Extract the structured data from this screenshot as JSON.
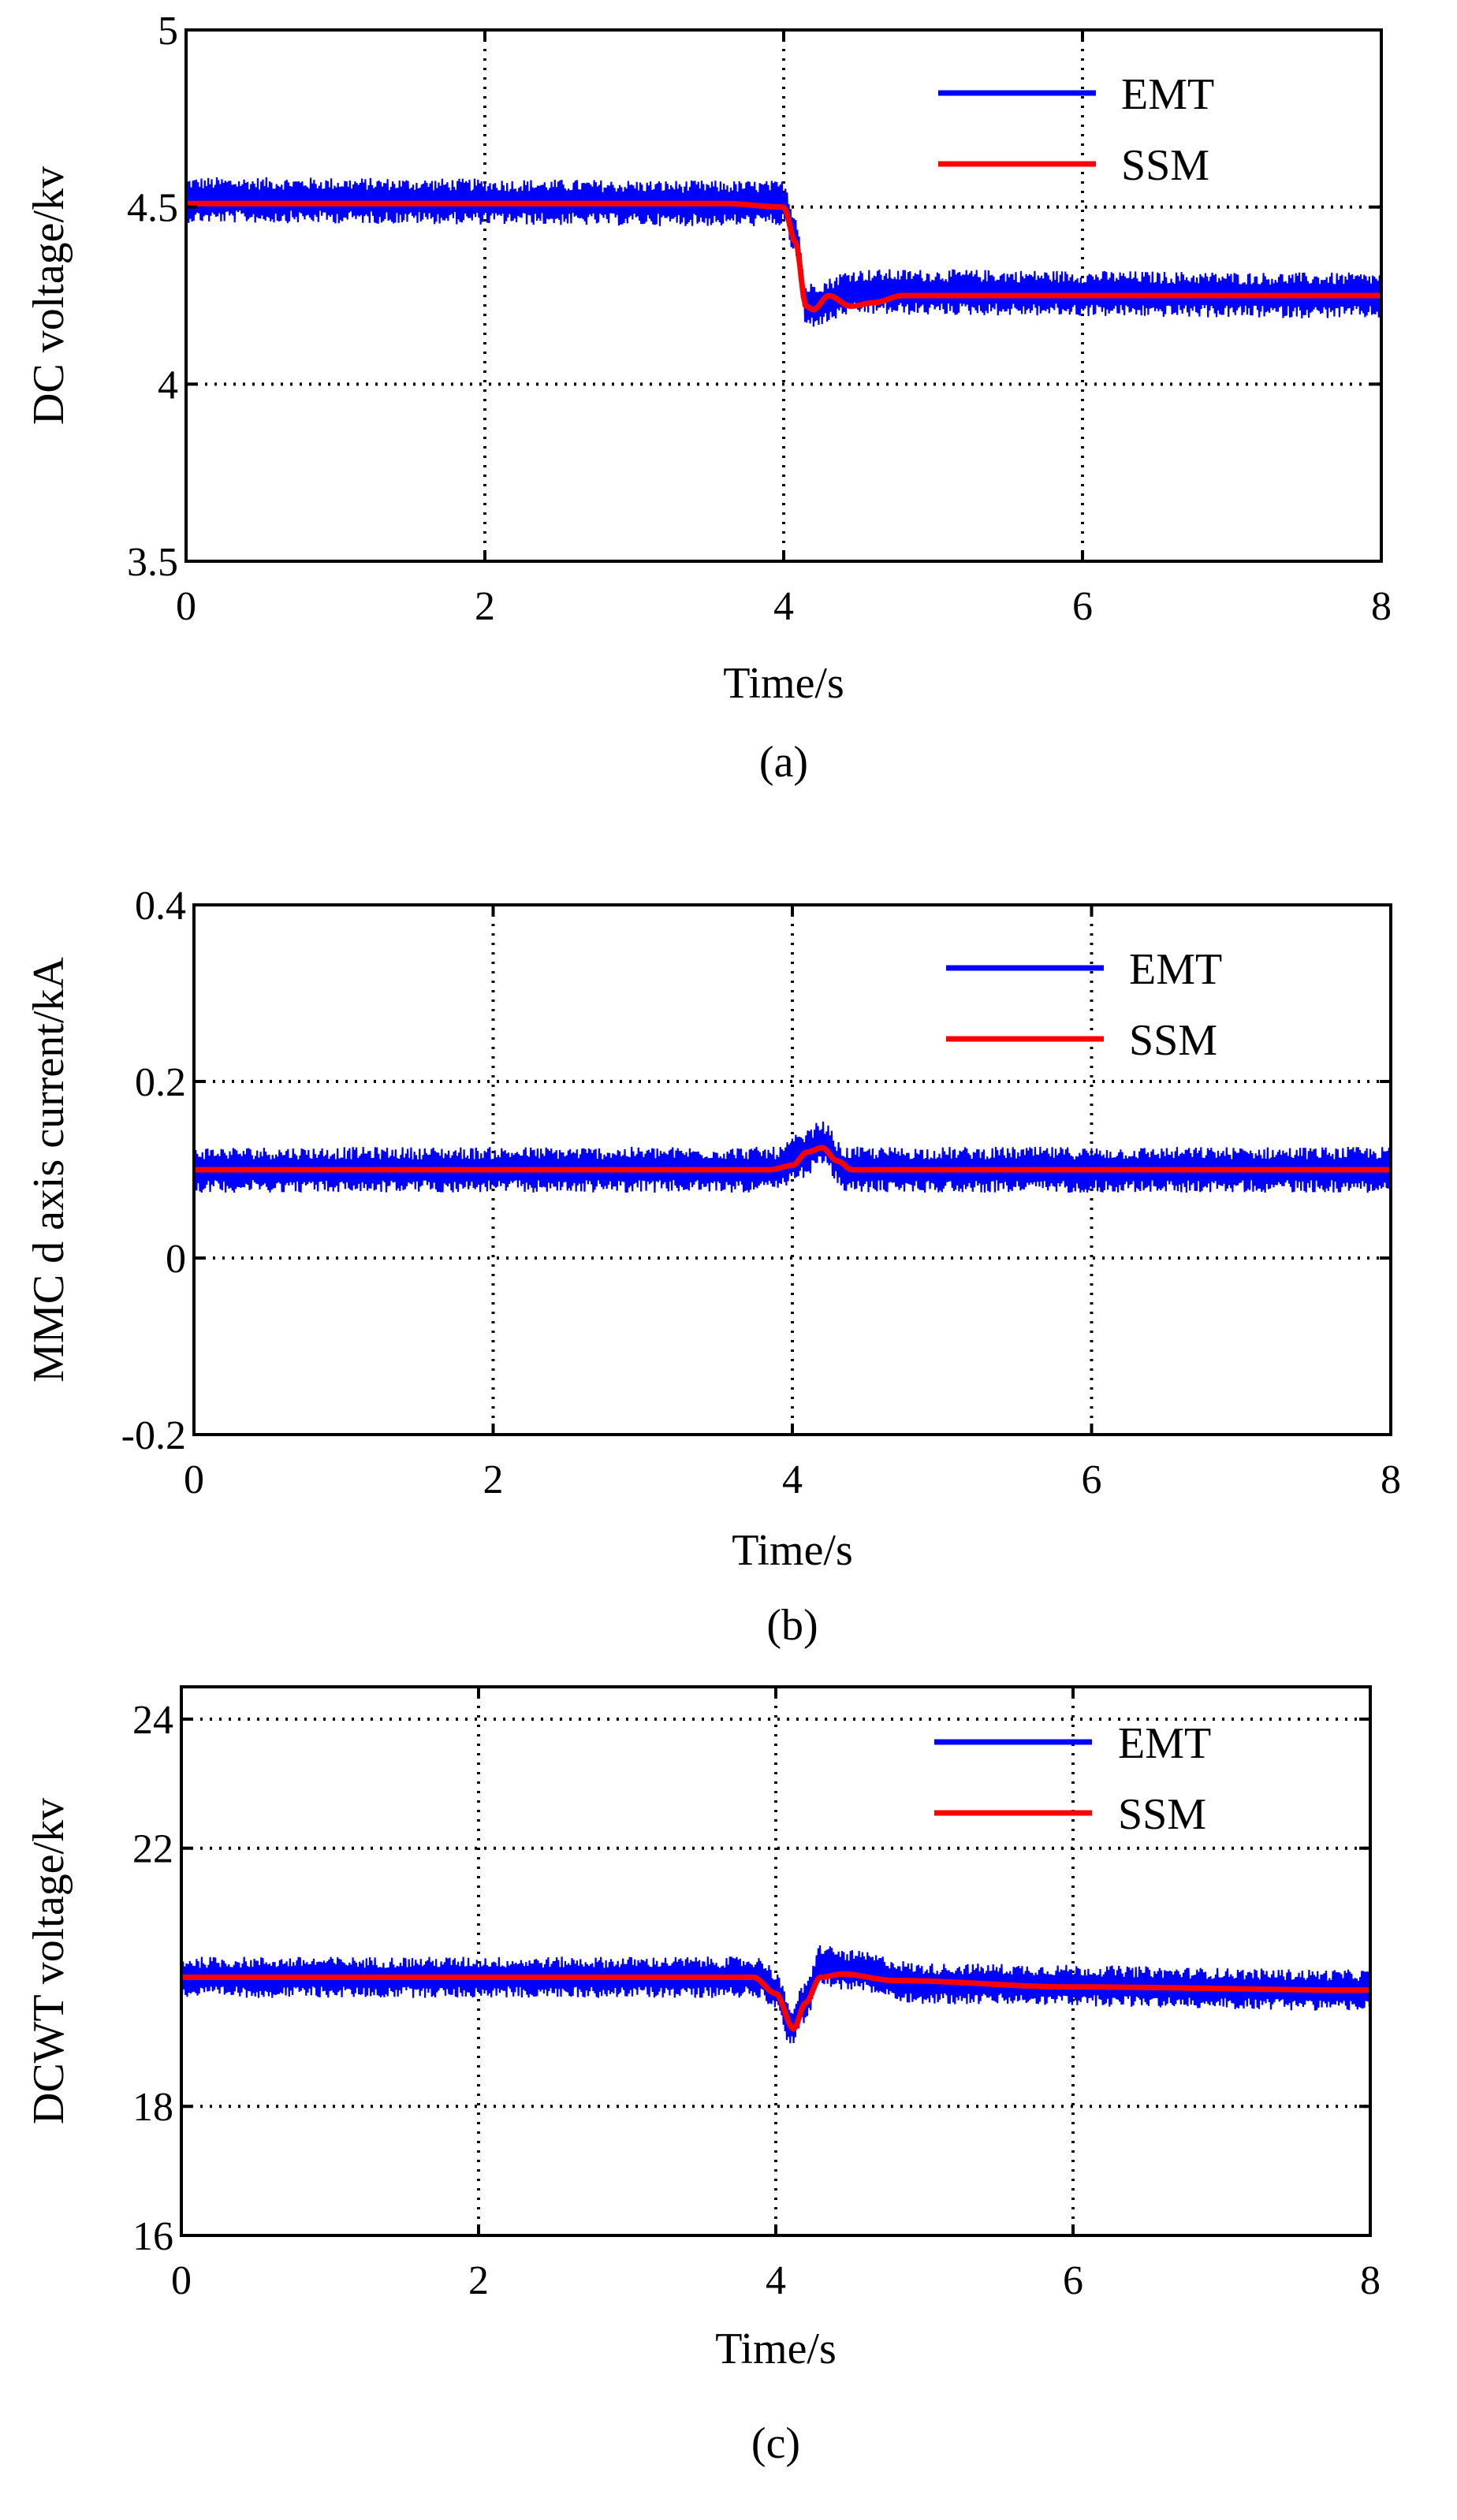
{
  "chart_data": [
    {
      "type": "line",
      "panel": "(a)",
      "caption": "(a)",
      "xlabel": "Time/s",
      "ylabel": "DC voltage/kv",
      "xlim": [
        0,
        8
      ],
      "ylim": [
        3.5,
        5
      ],
      "xticks": [
        0,
        2,
        4,
        6,
        8
      ],
      "xtick_labels": [
        "0",
        "2",
        "4",
        "6",
        "8"
      ],
      "yticks": [
        3.5,
        4,
        4.5,
        5
      ],
      "ytick_labels": [
        "3.5",
        "4",
        "4.5",
        "5"
      ],
      "grid": true,
      "legend_position": "top-right",
      "series": [
        {
          "name": "EMT",
          "color": "#0000ff",
          "description": "noisy oscillation (ripple ~±0.06 kV) around the SSM curve",
          "base_points": [
            [
              0,
              4.52
            ],
            [
              4.0,
              4.51
            ],
            [
              4.08,
              4.42
            ],
            [
              4.15,
              4.22
            ],
            [
              4.25,
              4.23
            ],
            [
              4.45,
              4.26
            ],
            [
              8,
              4.25
            ]
          ],
          "ripple": 0.065
        },
        {
          "name": "SSM",
          "color": "#ff0000",
          "points": [
            [
              0,
              4.51
            ],
            [
              3.6,
              4.51
            ],
            [
              4.0,
              4.5
            ],
            [
              4.08,
              4.4
            ],
            [
              4.15,
              4.22
            ],
            [
              4.2,
              4.21
            ],
            [
              4.3,
              4.25
            ],
            [
              4.45,
              4.22
            ],
            [
              4.6,
              4.23
            ],
            [
              4.8,
              4.25
            ],
            [
              8,
              4.25
            ]
          ]
        }
      ]
    },
    {
      "type": "line",
      "panel": "(b)",
      "caption": "(b)",
      "xlabel": "Time/s",
      "ylabel": "MMC d axis current/kA",
      "xlim": [
        0,
        8
      ],
      "ylim": [
        -0.2,
        0.4
      ],
      "xticks": [
        0,
        2,
        4,
        6,
        8
      ],
      "xtick_labels": [
        "0",
        "2",
        "4",
        "6",
        "8"
      ],
      "yticks": [
        -0.2,
        0,
        0.2,
        0.4
      ],
      "ytick_labels": [
        "-0.2",
        "0",
        "0.2",
        "0.4"
      ],
      "grid": true,
      "legend_position": "top-right",
      "series": [
        {
          "name": "EMT",
          "color": "#0000ff",
          "description": "noisy oscillation (ripple ~±0.025 kA) around the SSM curve",
          "base_points": [
            [
              0,
              0.1
            ],
            [
              3.9,
              0.1
            ],
            [
              4.05,
              0.115
            ],
            [
              4.2,
              0.13
            ],
            [
              4.35,
              0.1
            ],
            [
              8,
              0.1
            ]
          ],
          "ripple": 0.026
        },
        {
          "name": "SSM",
          "color": "#ff0000",
          "points": [
            [
              0,
              0.1
            ],
            [
              3.85,
              0.1
            ],
            [
              4.0,
              0.105
            ],
            [
              4.1,
              0.12
            ],
            [
              4.2,
              0.125
            ],
            [
              4.3,
              0.11
            ],
            [
              4.4,
              0.1
            ],
            [
              8,
              0.1
            ]
          ]
        }
      ]
    },
    {
      "type": "line",
      "panel": "(c)",
      "caption": "(c)",
      "xlabel": "Time/s",
      "ylabel": "DCWT voltage/kv",
      "xlim": [
        0,
        8
      ],
      "ylim": [
        16,
        24.5
      ],
      "xticks": [
        0,
        2,
        4,
        6,
        8
      ],
      "xtick_labels": [
        "0",
        "2",
        "4",
        "6",
        "8"
      ],
      "yticks": [
        16,
        18,
        22,
        24
      ],
      "ytick_labels": [
        "16",
        "18",
        "22",
        "24"
      ],
      "grid": true,
      "legend_position": "top-right",
      "series": [
        {
          "name": "EMT",
          "color": "#0000ff",
          "description": "noisy oscillation (ripple ~±0.3 kV) around the SSM curve",
          "base_points": [
            [
              0,
              20.0
            ],
            [
              3.9,
              20.0
            ],
            [
              4.0,
              19.8
            ],
            [
              4.1,
              19.25
            ],
            [
              4.2,
              19.6
            ],
            [
              4.3,
              20.2
            ],
            [
              4.5,
              20.1
            ],
            [
              5.0,
              19.9
            ],
            [
              8,
              19.8
            ]
          ],
          "ripple": 0.32
        },
        {
          "name": "SSM",
          "color": "#ff0000",
          "points": [
            [
              0,
              20.0
            ],
            [
              3.85,
              20.0
            ],
            [
              4.0,
              19.75
            ],
            [
              4.12,
              19.2
            ],
            [
              4.2,
              19.6
            ],
            [
              4.3,
              20.0
            ],
            [
              4.45,
              20.05
            ],
            [
              4.8,
              19.95
            ],
            [
              6.0,
              19.85
            ],
            [
              8,
              19.8
            ]
          ]
        }
      ]
    }
  ]
}
